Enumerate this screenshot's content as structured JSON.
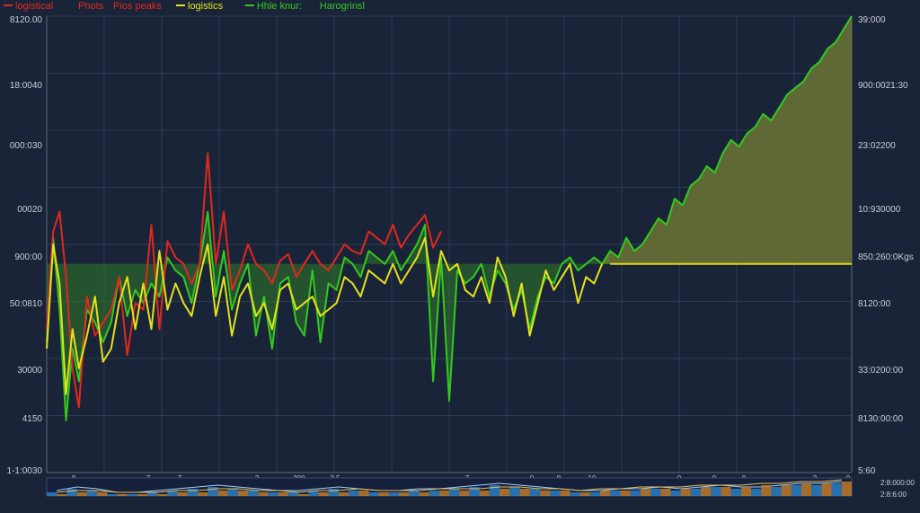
{
  "colors": {
    "background": "#1a2438",
    "grid": "#2c3a52",
    "red": "#e0281e",
    "yellow": "#e2e21c",
    "green": "#34c81e",
    "fill_green": "#2f7a2a",
    "fill_olive": "#6f7a36",
    "baseline": "#e2d41c",
    "nav_blue": "#2a7fc4",
    "nav_orange": "#c07a2a"
  },
  "legend": [
    {
      "name": "logistical",
      "color": "#e0281e"
    },
    {
      "name": "Phots",
      "color": "#e0281e"
    },
    {
      "name": "Pios peaks",
      "color": "#e0281e"
    },
    {
      "name": "logistics",
      "color": "#e2e21c"
    },
    {
      "name": "Hhle knur:",
      "color": "#34c81e"
    },
    {
      "name": "Harogrinsl",
      "color": "#34c81e"
    }
  ],
  "chart_data": {
    "type": "line",
    "grid": true,
    "legend_position": "top-left",
    "left_axis_ticks": [
      "8120.00",
      "18:0040",
      "000:030",
      "00020",
      "900:00",
      "50:0810",
      "30000",
      "4150",
      "1-1:0030"
    ],
    "right_axis_ticks": [
      "39:000",
      "900:0021:30",
      "23:02200",
      "10:930000",
      "850:260:0Kgs",
      "8120:00",
      "33:0200:00",
      "8130:00:00",
      "5:60"
    ],
    "right_axis_highlight": "850:260:0Kgs",
    "bottom_axis_ticks": [
      "8",
      "7",
      "7",
      "3",
      "200",
      "3.5",
      "7",
      "0",
      "8",
      "10",
      "0",
      "0",
      "0",
      "2",
      "0"
    ],
    "right_footer_labels": [
      "2:8:000:00",
      "2:8:6:00"
    ],
    "y_range": [
      0,
      100
    ],
    "x_range": [
      0,
      100
    ],
    "baseline_value": 50,
    "series": [
      {
        "name": "Pios peaks",
        "color": "#e0281e",
        "x": [
          0,
          0.8,
          1.6,
          2.4,
          3.2,
          4,
          5,
          6,
          7,
          8,
          9,
          10,
          11,
          12,
          13,
          14,
          15,
          16,
          17,
          18,
          19,
          20,
          21,
          22,
          23,
          24,
          25,
          26,
          27,
          28,
          29,
          30,
          31,
          32,
          33,
          34,
          35,
          36,
          37,
          38,
          39,
          40,
          41,
          42,
          43,
          44,
          45,
          46,
          47,
          48,
          49
        ],
        "y": [
          30,
          60,
          66,
          46,
          18,
          6,
          40,
          28,
          32,
          36,
          46,
          22,
          38,
          36,
          62,
          30,
          57,
          52,
          50,
          44,
          50,
          84,
          50,
          66,
          42,
          48,
          56,
          50,
          48,
          44,
          51,
          53,
          46,
          50,
          54,
          50,
          48,
          52,
          56,
          54,
          53,
          60,
          58,
          56,
          62,
          55,
          59,
          62,
          65,
          55,
          60
        ]
      },
      {
        "name": "logistics",
        "color": "#e2e21c",
        "x": [
          0,
          0.8,
          1.6,
          2.4,
          3.2,
          4,
          5,
          6,
          7,
          8,
          9,
          10,
          11,
          12,
          13,
          14,
          15,
          16,
          17,
          18,
          19,
          20,
          21,
          22,
          23,
          24,
          25,
          26,
          27,
          28,
          29,
          30,
          31,
          32,
          33,
          34,
          35,
          36,
          37,
          38,
          39,
          40,
          41,
          42,
          43,
          44,
          45,
          46,
          47,
          48,
          49,
          50,
          51,
          52,
          53,
          54,
          55,
          56,
          57,
          58,
          59,
          60,
          61,
          62,
          63,
          64,
          65,
          66,
          67,
          68,
          69
        ],
        "y": [
          24,
          56,
          44,
          10,
          30,
          18,
          28,
          40,
          20,
          24,
          38,
          46,
          30,
          44,
          30,
          54,
          36,
          44,
          38,
          34,
          46,
          56,
          34,
          46,
          28,
          40,
          44,
          34,
          38,
          30,
          42,
          44,
          36,
          38,
          40,
          34,
          36,
          38,
          46,
          44,
          40,
          48,
          46,
          44,
          50,
          44,
          48,
          52,
          58,
          40,
          54,
          48,
          50,
          42,
          40,
          46,
          38,
          52,
          46,
          34,
          44,
          28,
          38,
          48,
          42,
          46,
          50,
          38,
          46,
          44,
          50
        ]
      },
      {
        "name": "Harogrinsl",
        "color": "#34c81e",
        "x": [
          0,
          0.8,
          1.6,
          2.4,
          3.2,
          4,
          5,
          6,
          7,
          8,
          9,
          10,
          11,
          12,
          13,
          14,
          15,
          16,
          17,
          18,
          19,
          20,
          21,
          22,
          23,
          24,
          25,
          26,
          27,
          28,
          29,
          30,
          31,
          32,
          33,
          34,
          35,
          36,
          37,
          38,
          39,
          40,
          41,
          42,
          43,
          44,
          45,
          46,
          47,
          48,
          49,
          50,
          51,
          52,
          53,
          54,
          55,
          56,
          57,
          58,
          59,
          60,
          61,
          62,
          63,
          64,
          65,
          66,
          67,
          68,
          69,
          70,
          71,
          72,
          73,
          74,
          75,
          76,
          77,
          78,
          79,
          80,
          81,
          82,
          83,
          84,
          85,
          86,
          87,
          88,
          89,
          90,
          91,
          92,
          93,
          94,
          95,
          96,
          97,
          98,
          99,
          100
        ],
        "y": [
          26,
          58,
          36,
          2,
          24,
          14,
          36,
          32,
          26,
          32,
          46,
          34,
          42,
          38,
          44,
          40,
          52,
          48,
          46,
          38,
          50,
          66,
          40,
          54,
          36,
          44,
          50,
          28,
          40,
          24,
          44,
          46,
          32,
          28,
          48,
          26,
          44,
          42,
          52,
          50,
          46,
          54,
          52,
          50,
          54,
          48,
          52,
          56,
          62,
          14,
          52,
          8,
          48,
          44,
          46,
          50,
          40,
          48,
          44,
          36,
          42,
          30,
          40,
          46,
          44,
          50,
          52,
          48,
          50,
          52,
          50,
          54,
          52,
          58,
          54,
          56,
          60,
          64,
          62,
          70,
          68,
          74,
          76,
          80,
          78,
          84,
          88,
          86,
          90,
          92,
          96,
          94,
          98,
          102,
          104,
          106,
          110,
          112,
          116,
          118,
          122,
          126
        ]
      }
    ]
  },
  "navigator_series": [
    {
      "name": "nav-blue",
      "color": "#2a7fc4",
      "y": [
        2,
        4,
        3,
        1,
        1,
        2,
        3,
        4,
        5,
        4,
        3,
        2,
        2,
        3,
        4,
        3,
        2,
        2,
        3,
        3,
        4,
        5,
        6,
        5,
        4,
        3,
        2,
        2,
        3,
        3,
        4,
        3,
        4,
        5,
        4,
        4,
        5,
        6,
        6,
        7
      ]
    },
    {
      "name": "nav-orange",
      "color": "#c07a2a",
      "y": [
        1,
        2,
        2,
        1,
        1,
        1,
        2,
        2,
        3,
        3,
        2,
        2,
        1,
        2,
        2,
        3,
        2,
        2,
        2,
        3,
        3,
        3,
        4,
        4,
        3,
        3,
        2,
        3,
        3,
        4,
        4,
        4,
        5,
        5,
        5,
        6,
        6,
        7,
        7,
        8
      ]
    }
  ]
}
